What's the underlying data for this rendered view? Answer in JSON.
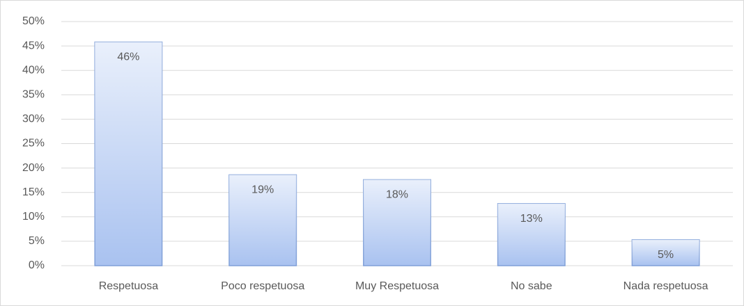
{
  "chart_data": {
    "type": "bar",
    "categories": [
      "Respetuosa",
      "Poco respetuosa",
      "Muy Respetuosa",
      "No sabe",
      "Nada respetuosa"
    ],
    "values": [
      45.8,
      18.6,
      17.6,
      12.7,
      5.3
    ],
    "value_labels": [
      "46%",
      "19%",
      "18%",
      "13%",
      "5%"
    ],
    "color": "#a9c2f0",
    "ylim": [
      0,
      50
    ],
    "yticks": [
      {
        "value": 0,
        "label": "0%"
      },
      {
        "value": 5,
        "label": "5%"
      },
      {
        "value": 10,
        "label": "10%"
      },
      {
        "value": 15,
        "label": "15%"
      },
      {
        "value": 20,
        "label": "20%"
      },
      {
        "value": 25,
        "label": "25%"
      },
      {
        "value": 30,
        "label": "30%"
      },
      {
        "value": 35,
        "label": "35%"
      },
      {
        "value": 40,
        "label": "40%"
      },
      {
        "value": 45,
        "label": "45%"
      },
      {
        "value": 50,
        "label": "50%"
      }
    ],
    "grid": true
  }
}
